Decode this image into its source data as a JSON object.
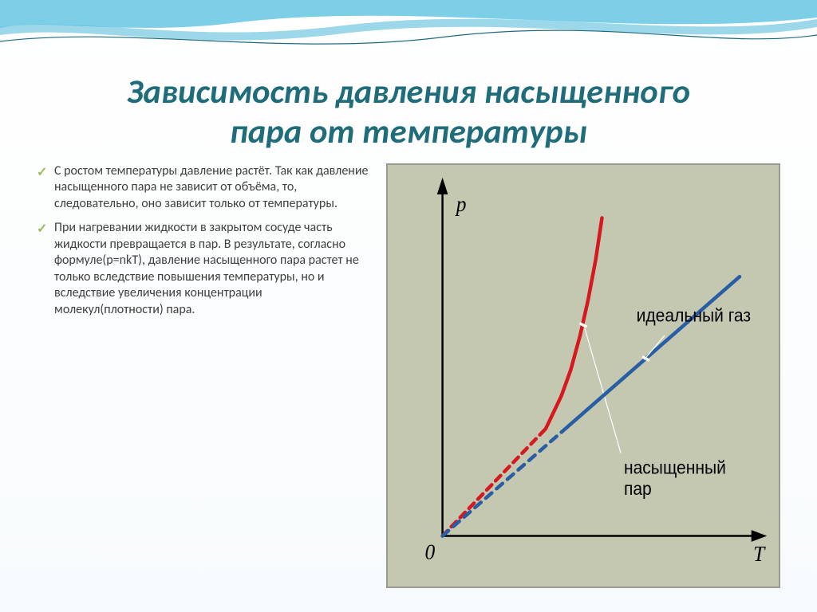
{
  "slide": {
    "title_line1": "Зависимость давления насыщенного",
    "title_line2": "пара от температуры",
    "title_color": "#1f6d7a",
    "title_fontsize_pt": 32
  },
  "bullets": {
    "check_color": "#9bbb59",
    "text_color": "#404040",
    "fontsize_pt": 16,
    "items": [
      "С ростом температуры давление растёт. Так как давление насыщенного пара не зависит от объёма, то, следовательно, оно зависит только от температуры.",
      "При нагревании жидкости в закрытом сосуде часть жидкости превращается в пар. В результате, согласно формуле(p=nkT), давление насыщенного пара растет не только вследствие повышения температуры, но и вследствие увеличения концентрации молекул(плотности) пара."
    ]
  },
  "wave": {
    "primary_color": "#7dcfe8",
    "secondary_color": "#4bb7d8",
    "line_color": "#1d6b80"
  },
  "chart": {
    "type": "line",
    "background_color": "#c4c8b1",
    "axis_color": "#000000",
    "axis_width": 2.5,
    "arrow_size": 10,
    "x_axis_label": "T",
    "y_axis_label": "p",
    "origin_label": "0",
    "axis_label_fontsize": 22,
    "axis_label_style": "italic",
    "axis_label_family": "serif",
    "xlim": [
      0,
      100
    ],
    "ylim": [
      0,
      100
    ],
    "chart_area": {
      "x_min": 14,
      "x_max": 94,
      "y_min": 88,
      "y_max": 6,
      "width": 80,
      "height": 82
    },
    "series": [
      {
        "name": "насыщенный пар",
        "label": "насыщенный\nпар",
        "label_pos": {
          "x": 58,
          "y": 18
        },
        "label_color": "#000000",
        "label_fontsize": 18,
        "color": "#d6181f",
        "width": 4.5,
        "style": "solid_with_dashed_extension",
        "dashed_segment": [
          {
            "x": 0,
            "y": 0
          },
          {
            "x": 33,
            "y": 31
          }
        ],
        "solid_points": [
          {
            "x": 33,
            "y": 31
          },
          {
            "x": 38,
            "y": 40.5
          },
          {
            "x": 41,
            "y": 48
          },
          {
            "x": 44,
            "y": 58
          },
          {
            "x": 46.5,
            "y": 68
          },
          {
            "x": 49,
            "y": 80
          },
          {
            "x": 51,
            "y": 92
          }
        ],
        "break_marker": {
          "pos": {
            "x": 45,
            "y": 61
          },
          "len": 5,
          "color": "#ffffff",
          "width": 3.5
        },
        "pointer_line": {
          "from": {
            "x": 57,
            "y": 24
          },
          "to": {
            "x": 45.5,
            "y": 60
          },
          "color": "#ffffff",
          "width": 1.2
        }
      },
      {
        "name": "идеальный газ",
        "label": "идеальный газ",
        "label_pos": {
          "x": 62,
          "y": 62
        },
        "label_color": "#000000",
        "label_fontsize": 18,
        "color": "#2a5ea4",
        "width": 4.5,
        "style": "solid_with_dashed_extension",
        "dashed_segment": [
          {
            "x": 0,
            "y": 0
          },
          {
            "x": 38,
            "y": 30
          }
        ],
        "solid_points": [
          {
            "x": 38,
            "y": 30
          },
          {
            "x": 95,
            "y": 75
          }
        ],
        "dash_pattern": "10,8",
        "break_marker": {
          "pos": {
            "x": 65,
            "y": 51.3
          },
          "len": 5,
          "color": "#ffffff",
          "width": 3.5
        },
        "pointer_line": {
          "from": {
            "x": 71,
            "y": 58
          },
          "to": {
            "x": 64.5,
            "y": 51
          },
          "color": "#ffffff",
          "width": 1.2
        }
      }
    ]
  }
}
